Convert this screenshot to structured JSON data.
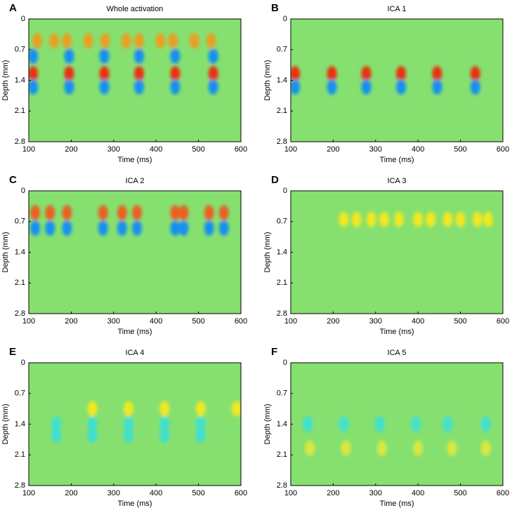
{
  "chart_data": [
    {
      "type": "heatmap",
      "letter": "A",
      "title": "Whole activation",
      "xlabel": "Time (ms)",
      "ylabel": "Depth (mm)",
      "background": "#86e070",
      "xlim": [
        100,
        600
      ],
      "xticks": [
        100,
        200,
        300,
        400,
        500,
        600
      ],
      "ylim": [
        2.8,
        0
      ],
      "yticks": [
        0,
        0.7,
        1.4,
        2.1,
        2.8
      ],
      "spots": [
        {
          "color": "#e8a020",
          "depth": 0.5,
          "times": [
            120,
            160,
            190,
            240,
            280,
            330,
            360,
            410,
            440,
            490,
            530
          ]
        },
        {
          "color": "#1890f0",
          "depth": 0.85,
          "times": [
            110,
            195,
            278,
            360,
            445,
            535
          ]
        },
        {
          "color": "#e83010",
          "depth": 1.25,
          "times": [
            110,
            195,
            278,
            360,
            445,
            535
          ]
        },
        {
          "color": "#1890f0",
          "depth": 1.55,
          "times": [
            110,
            195,
            278,
            360,
            445,
            535
          ]
        }
      ]
    },
    {
      "type": "heatmap",
      "letter": "B",
      "title": "ICA 1",
      "xlabel": "Time (ms)",
      "ylabel": "Depth (mm)",
      "background": "#86e070",
      "xlim": [
        100,
        600
      ],
      "xticks": [
        100,
        200,
        300,
        400,
        500,
        600
      ],
      "ylim": [
        2.8,
        0
      ],
      "yticks": [
        0,
        0.7,
        1.4,
        2.1,
        2.8
      ],
      "spots": [
        {
          "color": "#e83010",
          "depth": 1.25,
          "times": [
            110,
            197,
            278,
            360,
            445,
            535
          ]
        },
        {
          "color": "#1890f0",
          "depth": 1.55,
          "times": [
            110,
            197,
            278,
            360,
            445,
            535
          ]
        }
      ]
    },
    {
      "type": "heatmap",
      "letter": "C",
      "title": "ICA 2",
      "xlabel": "Time (ms)",
      "ylabel": "Depth (mm)",
      "background": "#86e070",
      "xlim": [
        100,
        600
      ],
      "xticks": [
        100,
        200,
        300,
        400,
        500,
        600
      ],
      "ylim": [
        2.8,
        0
      ],
      "yticks": [
        0,
        0.7,
        1.4,
        2.1,
        2.8
      ],
      "spots": [
        {
          "color": "#e86020",
          "depth": 0.5,
          "times": [
            115,
            150,
            190,
            275,
            320,
            355,
            445,
            465,
            525,
            560
          ]
        },
        {
          "color": "#1890f0",
          "depth": 0.85,
          "times": [
            115,
            150,
            190,
            275,
            320,
            355,
            445,
            465,
            525,
            560
          ]
        }
      ]
    },
    {
      "type": "heatmap",
      "letter": "D",
      "title": "ICA 3",
      "xlabel": "Time (ms)",
      "ylabel": "Depth (mm)",
      "background": "#86e070",
      "xlim": [
        100,
        600
      ],
      "xticks": [
        100,
        200,
        300,
        400,
        500,
        600
      ],
      "ylim": [
        2.8,
        0
      ],
      "yticks": [
        0,
        0.7,
        1.4,
        2.1,
        2.8
      ],
      "spots": [
        {
          "color": "#f0e820",
          "depth": 0.65,
          "times": [
            225,
            255,
            290,
            320,
            355,
            400,
            430,
            470,
            500,
            540,
            565
          ]
        }
      ]
    },
    {
      "type": "heatmap",
      "letter": "E",
      "title": "ICA 4",
      "xlabel": "Time (ms)",
      "ylabel": "Depth (mm)",
      "background": "#86e070",
      "xlim": [
        100,
        600
      ],
      "xticks": [
        100,
        200,
        300,
        400,
        500,
        600
      ],
      "ylim": [
        2.8,
        0
      ],
      "yticks": [
        0,
        0.7,
        1.4,
        2.1,
        2.8
      ],
      "spots": [
        {
          "color": "#f0e820",
          "depth": 1.05,
          "times": [
            250,
            335,
            420,
            505,
            590
          ]
        },
        {
          "color": "#40e0d0",
          "depth": 1.4,
          "times": [
            165,
            250,
            335,
            420,
            505
          ]
        },
        {
          "color": "#40e0d0",
          "depth": 1.65,
          "times": [
            165,
            250,
            335,
            420,
            505
          ]
        }
      ]
    },
    {
      "type": "heatmap",
      "letter": "F",
      "title": "ICA 5",
      "xlabel": "Time (ms)",
      "ylabel": "Depth (mm)",
      "background": "#86e070",
      "xlim": [
        100,
        600
      ],
      "xticks": [
        100,
        200,
        300,
        400,
        500,
        600
      ],
      "ylim": [
        2.8,
        0
      ],
      "yticks": [
        0,
        0.7,
        1.4,
        2.1,
        2.8
      ],
      "spots": [
        {
          "color": "#40e0d0",
          "depth": 1.4,
          "times": [
            140,
            225,
            310,
            395,
            470,
            560
          ]
        },
        {
          "color": "#d8e840",
          "depth": 1.95,
          "times": [
            145,
            230,
            315,
            400,
            480,
            560
          ]
        }
      ]
    }
  ]
}
